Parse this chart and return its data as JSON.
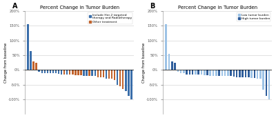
{
  "title": "Percent Change in Tumor Burden",
  "ylabel": "Change from baseline",
  "ylim": [
    -150,
    200
  ],
  "yticks": [
    -100,
    -50,
    0,
    50,
    100,
    150,
    200
  ],
  "ytick_labels": [
    "-100%",
    "-50%",
    "0%",
    "50%",
    "100%",
    "150%",
    "200%"
  ],
  "chartA_values": [
    155,
    65,
    30,
    25,
    -15,
    -35,
    -50,
    -55,
    -10,
    -15,
    -20,
    -25,
    -30,
    -65,
    -10,
    -18,
    -15,
    -25,
    -20,
    -30,
    -10,
    -15,
    -72,
    -20,
    -10,
    -30,
    -20,
    -88,
    -15,
    -20,
    -25,
    -10,
    -100,
    -18,
    -10,
    -18,
    -12,
    -5
  ],
  "chartA_colors": [
    "blue",
    "blue",
    "orange",
    "orange",
    "blue",
    "orange",
    "blue",
    "orange",
    "blue",
    "orange",
    "blue",
    "orange",
    "blue",
    "orange",
    "blue",
    "orange",
    "blue",
    "orange",
    "blue",
    "orange",
    "blue",
    "orange",
    "blue",
    "orange",
    "blue",
    "orange",
    "blue",
    "blue",
    "orange",
    "blue",
    "orange",
    "blue",
    "blue",
    "orange",
    "blue",
    "orange",
    "blue",
    "blue"
  ],
  "chartA_legend_labels": [
    "Include Her-2 targeted\ntherapy and Radiotherapy",
    "Other treatment"
  ],
  "chartA_legend_colors": [
    "#3A6EAA",
    "#C1622B"
  ],
  "chartB_values": [
    155,
    55,
    30,
    25,
    -10,
    -15,
    -20,
    -25,
    -30,
    -15,
    -20,
    -22,
    -18,
    -15,
    -20,
    -25,
    -28,
    -20,
    -15,
    -25,
    -20,
    -28,
    -20,
    -15,
    -68,
    -25,
    -20,
    -88,
    -30,
    -25,
    -100,
    -20,
    -10,
    -18,
    -15,
    -5
  ],
  "chartB_colors": [
    "light",
    "light",
    "dark",
    "dark",
    "light",
    "dark",
    "light",
    "dark",
    "light",
    "dark",
    "light",
    "dark",
    "light",
    "dark",
    "light",
    "dark",
    "light",
    "dark",
    "light",
    "dark",
    "light",
    "dark",
    "light",
    "dark",
    "light",
    "dark",
    "light",
    "dark",
    "light",
    "dark",
    "light",
    "dark",
    "light",
    "dark",
    "light",
    "light"
  ],
  "chartB_legend_labels": [
    "Low tumor burden",
    "High tumor burden"
  ],
  "chartB_legend_colors": [
    "#9DC3E6",
    "#2E5D9B"
  ],
  "blue_color": "#3A6EAA",
  "orange_color": "#C1622B",
  "light_blue": "#9DC3E6",
  "dark_blue": "#2E5D9B",
  "bg_color": "#FFFFFF",
  "grid_color": "#CCCCCC"
}
